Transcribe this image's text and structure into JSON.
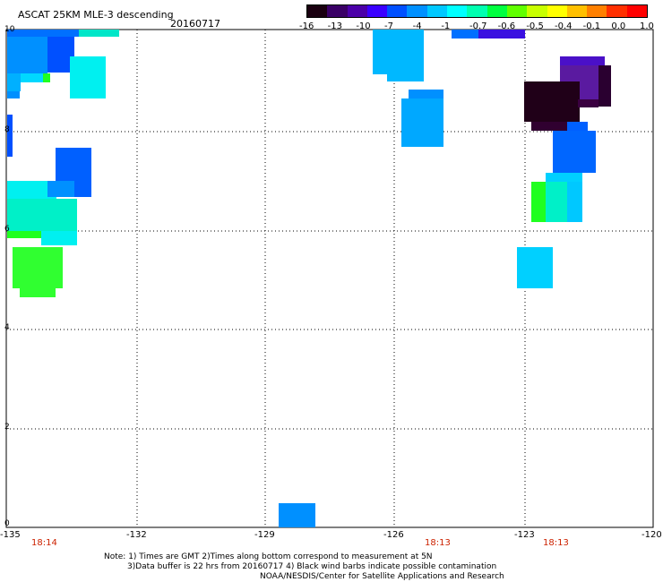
{
  "title": "ASCAT 25KM MLE-3 descending",
  "date": "20160717",
  "colorbar": {
    "colors": [
      "#1a0010",
      "#3a0066",
      "#4b00a8",
      "#3a00ff",
      "#0050ff",
      "#0090ff",
      "#00c8ff",
      "#00ffff",
      "#00ffb0",
      "#00ff40",
      "#60ff00",
      "#c8ff00",
      "#ffff00",
      "#ffc000",
      "#ff8000",
      "#ff3000",
      "#ff0000"
    ],
    "labels": [
      "-16",
      "-13",
      "-10",
      "-7",
      "-4",
      "-1",
      "-0.7",
      "-0.6",
      "-0.5",
      "-0.4",
      "-0.1",
      "0.0",
      "1.0"
    ]
  },
  "x_ticks": [
    "-135",
    "-132",
    "-129",
    "-126",
    "-123",
    "-120"
  ],
  "y_ticks": [
    "10",
    "8",
    "6",
    "4",
    "2",
    "0"
  ],
  "times": [
    "18:14",
    "18:13",
    "18:13"
  ],
  "notes": {
    "line1": "Note: 1) Times are GMT 2)Times along bottom correspond to measurement at 5N",
    "line2": "3)Data buffer is 22 hrs from 20160717 4) Black wind barbs indicate possible contamination",
    "line3": "NOAA/NESDIS/Center for Satellite Applications and Research"
  }
}
